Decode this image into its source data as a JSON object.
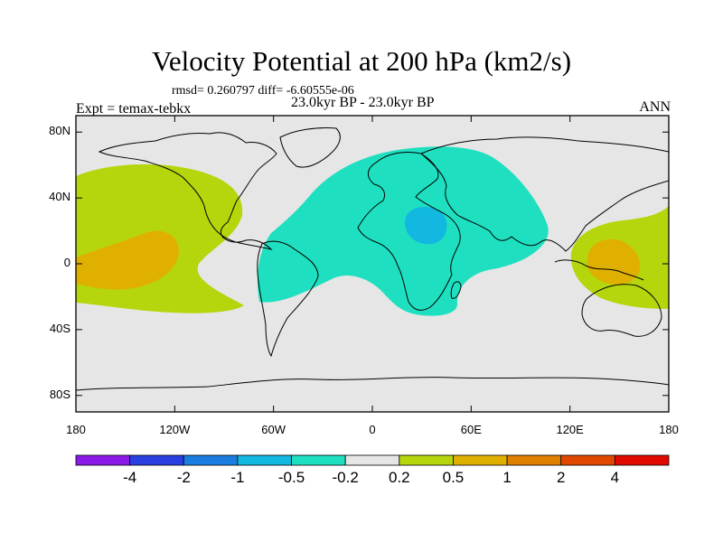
{
  "title": "Velocity Potential at 200 hPa (km2/s)",
  "stats_text": "rmsd= 0.260797 diff= -6.60555e-06",
  "period_text": "23.0kyr BP - 23.0kyr BP",
  "experiment_text": "Expt = temax-tebkx",
  "season_text": "ANN",
  "map": {
    "projection": "cylindrical-equidistant",
    "lon_range": [
      -180,
      180
    ],
    "lat_range": [
      -90,
      90
    ],
    "y_ticks": [
      {
        "value": 80,
        "label": "80N"
      },
      {
        "value": 40,
        "label": "40N"
      },
      {
        "value": 0,
        "label": "0"
      },
      {
        "value": -40,
        "label": "40S"
      },
      {
        "value": -80,
        "label": "80S"
      }
    ],
    "x_ticks": [
      {
        "value": -180,
        "label": "180"
      },
      {
        "value": -120,
        "label": "120W"
      },
      {
        "value": -60,
        "label": "60W"
      },
      {
        "value": 0,
        "label": "0"
      },
      {
        "value": 60,
        "label": "60E"
      },
      {
        "value": 120,
        "label": "120E"
      },
      {
        "value": 180,
        "label": "180"
      }
    ],
    "background_color": "#e6e6e6"
  },
  "colorbar": {
    "colors": [
      "#8b1ae8",
      "#2a3fe0",
      "#1c7de0",
      "#12b8e0",
      "#1ee0c0",
      "#e6e6e6",
      "#b5d60c",
      "#e0b000",
      "#e08000",
      "#e04800",
      "#e00a00"
    ],
    "labels": [
      "-4",
      "-2",
      "-1",
      "-0.5",
      "-0.2",
      "0.2",
      "0.5",
      "1",
      "2",
      "4"
    ]
  },
  "legend_colors": {
    "neg_02": "#1ee0c0",
    "neg_05": "#12b8e0",
    "pos_02": "#b5d60c",
    "pos_05": "#e0b000"
  }
}
